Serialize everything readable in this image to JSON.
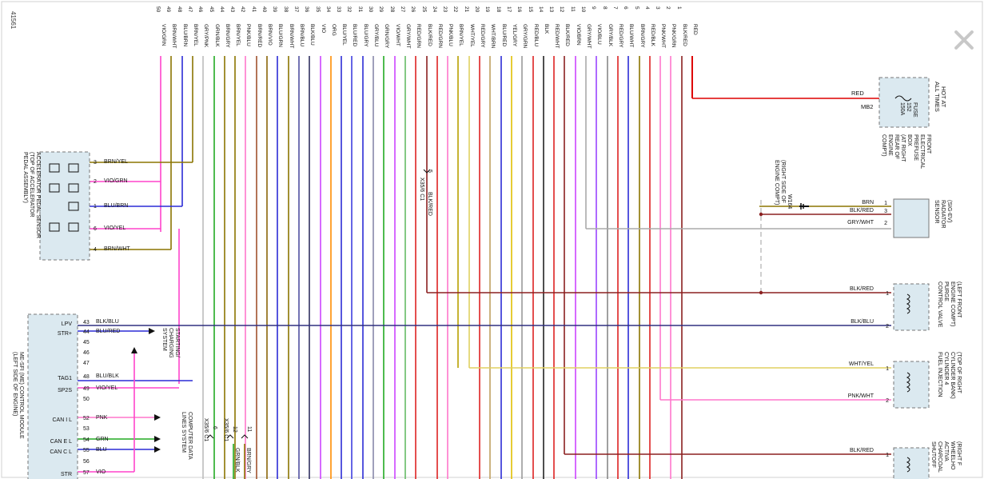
{
  "diagram_id": "41561",
  "wires": [
    {
      "num": "50",
      "label": "VIO/GRN",
      "color": "#ff44cc"
    },
    {
      "num": "49",
      "label": "BRN/WHT",
      "color": "#8b7500"
    },
    {
      "num": "48",
      "label": "BLU/BRN",
      "color": "#2b2bd6"
    },
    {
      "num": "47",
      "label": "BRN/YEL",
      "color": "#8b7500"
    },
    {
      "num": "46",
      "label": "GRY/PNK",
      "color": "#bdbdbd"
    },
    {
      "num": "45",
      "label": "GRN/BLK",
      "color": "#22aa22"
    },
    {
      "num": "44",
      "label": "BRN/GRY",
      "color": "#8b7500"
    },
    {
      "num": "43",
      "label": "BRN/YEL",
      "color": "#8b7500"
    },
    {
      "num": "42",
      "label": "PNK/BLU",
      "color": "#ff77cc"
    },
    {
      "num": "41",
      "label": "BRN/RED",
      "color": "#a0522d"
    },
    {
      "num": "40",
      "label": "BRN/VIO",
      "color": "#8b6508"
    },
    {
      "num": "39",
      "label": "BLU/GRN",
      "color": "#2b2bd6"
    },
    {
      "num": "38",
      "label": "BRN/WHT",
      "color": "#8b7500"
    },
    {
      "num": "37",
      "label": "BRN/BLU",
      "color": "#5050a0"
    },
    {
      "num": "36",
      "label": "BLK/BLU",
      "color": "#303060"
    },
    {
      "num": "35",
      "label": "VIO",
      "color": "#cc44ff"
    },
    {
      "num": "34",
      "label": "ORG",
      "color": "#ff8c00"
    },
    {
      "num": "33",
      "label": "BLU/YEL",
      "color": "#2b2bd6"
    },
    {
      "num": "32",
      "label": "BLU/RED",
      "color": "#4040e0"
    },
    {
      "num": "31",
      "label": "BLU/GRY",
      "color": "#2b2bd6"
    },
    {
      "num": "30",
      "label": "GRY/BLU",
      "color": "#8888aa"
    },
    {
      "num": "29",
      "label": "GRN/GRY",
      "color": "#22aa22"
    },
    {
      "num": "28",
      "label": "VIO/WHT",
      "color": "#cc44ff"
    },
    {
      "num": "27",
      "label": "GRY/WHT",
      "color": "#66bb66"
    },
    {
      "num": "26",
      "label": "RED/GRN",
      "color": "#dd2222"
    },
    {
      "num": "25",
      "label": "BLK/RED",
      "color": "#8b2020"
    },
    {
      "num": "24",
      "label": "RED/GRN",
      "color": "#dd2222"
    },
    {
      "num": "23",
      "label": "PNK/BLU",
      "color": "#ff77cc"
    },
    {
      "num": "22",
      "label": "BRN/YEL",
      "color": "#b8a000"
    },
    {
      "num": "21",
      "label": "WHT/YEL",
      "color": "#e0d060"
    },
    {
      "num": "20",
      "label": "RED/GRY",
      "color": "#dd2222"
    },
    {
      "num": "19",
      "label": "WHT/BRN",
      "color": "#c0a060"
    },
    {
      "num": "18",
      "label": "BLU/RED",
      "color": "#2b2bd6"
    },
    {
      "num": "17",
      "label": "YEL/GRY",
      "color": "#e0c000"
    },
    {
      "num": "16",
      "label": "GRY/GRN",
      "color": "#999999"
    },
    {
      "num": "15",
      "label": "RED/BLU",
      "color": "#dd2222"
    },
    {
      "num": "14",
      "label": "BLK",
      "color": "#222222"
    },
    {
      "num": "13",
      "label": "RED/WHT",
      "color": "#dd2222"
    },
    {
      "num": "12",
      "label": "BLK/RED",
      "color": "#8b2020"
    },
    {
      "num": "11",
      "label": "VIO/BRN",
      "color": "#cc44ff"
    },
    {
      "num": "10",
      "label": "GRY/WHT",
      "color": "#aaaaaa"
    },
    {
      "num": "9",
      "label": "VIO/BLU",
      "color": "#9944ff"
    },
    {
      "num": "8",
      "label": "GRY/BLK",
      "color": "#888888"
    },
    {
      "num": "7",
      "label": "RED/GRY",
      "color": "#dd2222"
    },
    {
      "num": "6",
      "label": "BLU/WHT",
      "color": "#2b2bd6"
    },
    {
      "num": "5",
      "label": "BRN/GRY",
      "color": "#8b7500"
    },
    {
      "num": "4",
      "label": "RED/BLK",
      "color": "#dd2222"
    },
    {
      "num": "3",
      "label": "PNK/WHT",
      "color": "#ff77cc"
    },
    {
      "num": "2",
      "label": "PNK/GRN",
      "color": "#ff77cc"
    },
    {
      "num": "1",
      "label": "BLK/RED",
      "color": "#8b2020"
    },
    {
      "num": "",
      "label": "RED",
      "color": "#dd0000"
    }
  ],
  "fuse_box": {
    "lines": [
      "HOT AT",
      "ALL TIMES"
    ],
    "fuse": [
      "FUSE",
      "152",
      "150A"
    ],
    "location": [
      "FRONT",
      "ELECTRICAL",
      "PREFUSE",
      "BOX",
      "(AT RIGHT",
      "REAR OF",
      "ENGINE",
      "COMPT)"
    ],
    "wire_label": "RED",
    "connector": "MB2"
  },
  "ground": {
    "name": "W164",
    "location": [
      "(RIGHT SIDE OF",
      "ENGINE COMPT)"
    ]
  },
  "radiator_sensor": {
    "title": [
      "(SIG-EV)",
      "RADIATOR",
      "SENSOR"
    ],
    "pins": [
      {
        "num": "1",
        "wire": "BRN"
      },
      {
        "num": "3",
        "wire": "BLK/RED"
      },
      {
        "num": "2",
        "wire": "GRY/WHT"
      }
    ]
  },
  "purge_valve": {
    "title": [
      "(LEFT FRONT",
      "ENGINE COMPT)",
      "PURGE",
      "CONTROL VALVE"
    ],
    "pins": [
      {
        "num": "1",
        "wire": "BLK/RED"
      },
      {
        "num": "2",
        "wire": "BLK/BLU"
      }
    ]
  },
  "fuel_injection": {
    "title": [
      "(TOP OF RIGHT",
      "CYLINDER BANK)",
      "CYLINDER 4",
      "FUEL INJECTION"
    ],
    "pins": [
      {
        "num": "1",
        "wire": "WHT/YEL"
      },
      {
        "num": "2",
        "wire": "PNK/WHT"
      }
    ]
  },
  "canister_valve": {
    "title": [
      "(RIGHT F",
      "WHEELHO",
      "ACTIVA",
      "CHARCOAL",
      "SHUTOFF"
    ],
    "pins": [
      {
        "num": "1",
        "wire": "BLK/RED"
      }
    ]
  },
  "pedal_sensor": {
    "title": [
      "ACCELERATOR PEDAL SENSOR",
      "(TOP OF ACCELERATOR",
      "PEDAL ASSEMBLY)"
    ],
    "pins": [
      {
        "num": "3",
        "wire": "BRN/YEL"
      },
      {
        "num": "2",
        "wire": "VIO/GRN"
      },
      {
        "num": "1",
        "wire": "BLU/BRN"
      },
      {
        "num": "6",
        "wire": "VIO/YEL"
      },
      {
        "num": "4",
        "wire": "BRN/WHT"
      }
    ]
  },
  "ecm": {
    "title": [
      "ME-SFI (ME) CONTROL MODULE",
      "(LEFT SIDE OF ENGINE)"
    ],
    "pins": [
      {
        "func": "LPV",
        "num": "43",
        "wire": "BLK/BLU"
      },
      {
        "func": "STR+",
        "num": "44",
        "wire": "BLU/RED"
      },
      {
        "func": "",
        "num": "45",
        "wire": ""
      },
      {
        "func": "",
        "num": "46",
        "wire": ""
      },
      {
        "func": "",
        "num": "47",
        "wire": ""
      },
      {
        "func": "TAG1",
        "num": "48",
        "wire": "BLU/BLK"
      },
      {
        "func": "SP2S",
        "num": "49",
        "wire": "VIO/YEL"
      },
      {
        "func": "",
        "num": "50",
        "wire": ""
      },
      {
        "func": "CAN I L",
        "num": "52",
        "wire": "PNK"
      },
      {
        "func": "",
        "num": "53",
        "wire": ""
      },
      {
        "func": "CAN E L",
        "num": "54",
        "wire": "GRN"
      },
      {
        "func": "CAN C L",
        "num": "55",
        "wire": "BLU"
      },
      {
        "func": "",
        "num": "56",
        "wire": ""
      },
      {
        "func": "STR",
        "num": "57",
        "wire": "VIO"
      }
    ]
  },
  "starting_system": [
    "STARTING/",
    "CHARGING",
    "SYSTEM"
  ],
  "data_lines": [
    "COMPUTER DATA",
    "LINES SYSTEM"
  ],
  "connector_x35": {
    "name": "X35/6 C1",
    "pin": "5",
    "wire": "BLK/RED"
  },
  "bottom_connectors": [
    {
      "name": "X35/6 C1",
      "pin": "6"
    },
    {
      "name": "X35/6 C1",
      "pin": "12"
    },
    {
      "name": "",
      "pin": "11"
    }
  ],
  "bottom_wires": [
    "GRN/BLK",
    "BRN/GRY"
  ]
}
